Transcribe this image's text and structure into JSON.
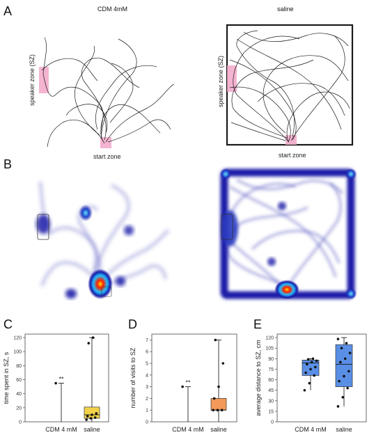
{
  "panels": {
    "A": {
      "letter": "A",
      "left_title": "CDM 4mM",
      "right_title": "saline",
      "speaker_zone_label": "speaker zone (SZ)",
      "start_zone_label": "start zone",
      "colors": {
        "track": "#1a1a1a",
        "zone": "#f2a7c9"
      }
    },
    "B": {
      "letter": "B",
      "description_colors": {
        "low": "#dde0f5",
        "mid": "#1a1aa8",
        "high": "#ff0000",
        "peak": "#ffe000"
      }
    },
    "C": {
      "letter": "C"
    },
    "D": {
      "letter": "D"
    },
    "E": {
      "letter": "E"
    }
  },
  "chart_data": [
    {
      "panel": "C",
      "type": "box",
      "categories": [
        "CDM 4 mM",
        "saline"
      ],
      "ylabel": "time spent in SZ, s",
      "ylim": [
        0,
        125
      ],
      "yticks": [
        0,
        20,
        40,
        60,
        80,
        100,
        120
      ],
      "significance": "**",
      "series": [
        {
          "category": "CDM 4 mM",
          "color": "#ffffff",
          "box": [
            0,
            0,
            0
          ],
          "whisker": [
            0,
            55
          ],
          "points": [
            55
          ]
        },
        {
          "category": "saline",
          "color": "#f2d24a",
          "box": [
            5,
            10,
            21
          ],
          "whisker": [
            0,
            120
          ],
          "points": [
            3,
            5,
            6,
            8,
            10,
            12,
            112,
            120
          ]
        }
      ]
    },
    {
      "panel": "D",
      "type": "box",
      "categories": [
        "CDM 4 mM",
        "saline"
      ],
      "ylabel": "number of visits to SZ",
      "ylim": [
        0,
        7.5
      ],
      "yticks": [
        0,
        1,
        2,
        3,
        4,
        5,
        6,
        7
      ],
      "significance": "**",
      "series": [
        {
          "category": "CDM 4 mM",
          "color": "#ffffff",
          "box": [
            0,
            0,
            0
          ],
          "whisker": [
            0,
            3
          ],
          "points": [
            3
          ]
        },
        {
          "category": "saline",
          "color": "#f39a5a",
          "box": [
            1,
            1,
            2
          ],
          "whisker": [
            0,
            7
          ],
          "points": [
            1,
            1,
            1,
            2,
            3,
            5,
            7
          ]
        }
      ]
    },
    {
      "panel": "E",
      "type": "box",
      "categories": [
        "CDM 4 mM",
        "saline"
      ],
      "ylabel": "average distance to SZ, cm",
      "ylim": [
        0,
        125
      ],
      "yticks": [
        0,
        15,
        30,
        45,
        60,
        75,
        90,
        105,
        120
      ],
      "series": [
        {
          "category": "CDM 4 mM",
          "color": "#5a8fe6",
          "box": [
            66,
            84,
            88
          ],
          "whisker": [
            45,
            90
          ],
          "points": [
            45,
            55,
            66,
            70,
            75,
            78,
            82,
            85,
            87,
            89,
            90
          ]
        },
        {
          "category": "saline",
          "color": "#5a8fe6",
          "box": [
            50,
            82,
            110
          ],
          "whisker": [
            22,
            120
          ],
          "points": [
            22,
            35,
            48,
            58,
            65,
            72,
            85,
            90,
            98,
            105,
            112,
            118
          ]
        }
      ]
    }
  ]
}
